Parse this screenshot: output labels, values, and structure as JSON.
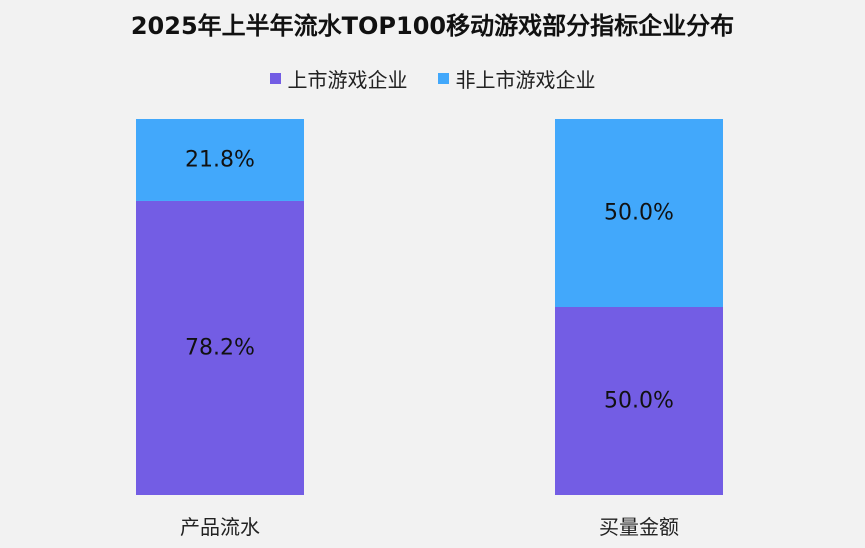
{
  "chart_data": {
    "type": "bar",
    "stacked": true,
    "normalized": true,
    "title": "2025年上半年流水TOP100移动游戏部分指标企业分布",
    "categories": [
      "产品流水",
      "买量金额"
    ],
    "series": [
      {
        "name": "上市游戏企业",
        "values": [
          78.2,
          50.0
        ],
        "labels": [
          "78.2%",
          "50.0%"
        ],
        "color": "#735de4"
      },
      {
        "name": "非上市游戏企业",
        "values": [
          21.8,
          50.0
        ],
        "labels": [
          "21.8%",
          "50.0%"
        ],
        "color": "#42a8fb"
      }
    ],
    "ylim": [
      0,
      100
    ],
    "legend": "top-center",
    "grid": false
  }
}
